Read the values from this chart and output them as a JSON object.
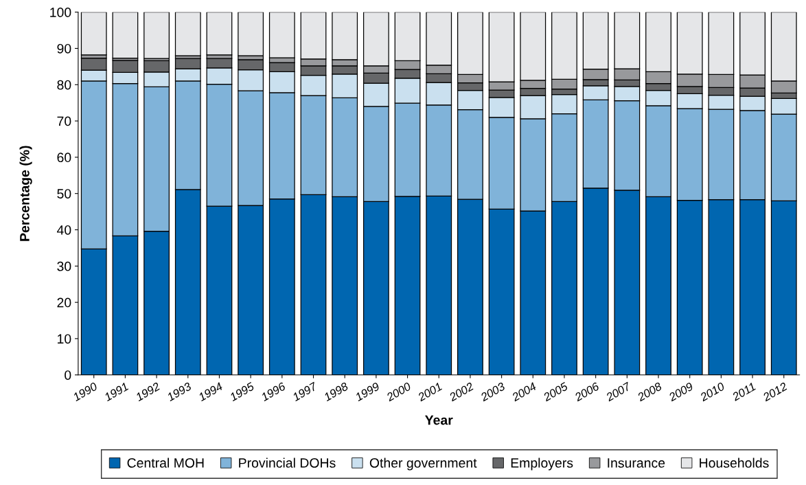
{
  "chart_data": {
    "type": "bar",
    "stacked": true,
    "xlabel": "Year",
    "ylabel": "Percentage (%)",
    "categories": [
      "1990",
      "1991",
      "1992",
      "1993",
      "1994",
      "1995",
      "1996",
      "1997",
      "1998",
      "1999",
      "2000",
      "2001",
      "2002",
      "2003",
      "2004",
      "2005",
      "2006",
      "2007",
      "2008",
      "2009",
      "2010",
      "2011",
      "2012"
    ],
    "series": [
      {
        "name": "Central MOH",
        "color": "#0066b0",
        "values": [
          34.7,
          38.3,
          39.6,
          51.1,
          46.5,
          46.7,
          48.5,
          49.7,
          49.1,
          47.8,
          49.2,
          49.3,
          48.4,
          45.7,
          45.2,
          47.8,
          51.5,
          50.9,
          49.1,
          48.1,
          48.3,
          48.3,
          48.0
        ]
      },
      {
        "name": "Provincial DOHs",
        "color": "#80b3d9",
        "values": [
          46.3,
          42.0,
          39.8,
          29.9,
          33.6,
          31.6,
          29.3,
          27.3,
          27.3,
          26.2,
          25.7,
          25.1,
          24.7,
          25.3,
          25.4,
          24.2,
          24.3,
          24.7,
          25.1,
          25.3,
          24.9,
          24.6,
          23.9
        ]
      },
      {
        "name": "Other government",
        "color": "#cae0ef",
        "values": [
          3.0,
          3.1,
          4.1,
          3.4,
          4.5,
          5.8,
          5.8,
          5.6,
          6.5,
          6.4,
          6.9,
          6.2,
          5.3,
          5.5,
          6.4,
          5.3,
          3.9,
          3.9,
          4.2,
          4.1,
          3.9,
          3.9,
          4.3
        ]
      },
      {
        "name": "Employers",
        "color": "#666769",
        "values": [
          3.3,
          3.3,
          3.1,
          2.8,
          2.6,
          2.8,
          2.5,
          2.6,
          2.3,
          2.8,
          2.4,
          2.4,
          2.1,
          2.0,
          2.0,
          1.5,
          1.7,
          1.8,
          1.9,
          2.0,
          2.1,
          2.3,
          1.5
        ]
      },
      {
        "name": "Insurance",
        "color": "#98999c",
        "values": [
          0.9,
          0.6,
          0.6,
          0.8,
          1.0,
          1.1,
          1.3,
          1.9,
          1.7,
          2.0,
          2.4,
          2.4,
          2.3,
          2.3,
          2.2,
          2.7,
          2.9,
          3.1,
          3.3,
          3.4,
          3.6,
          3.6,
          3.3
        ]
      },
      {
        "name": "Households",
        "color": "#e5e6e8",
        "values": [
          11.8,
          12.7,
          12.8,
          12.0,
          11.8,
          12.0,
          12.6,
          12.9,
          13.1,
          14.8,
          13.4,
          14.6,
          17.2,
          19.2,
          18.8,
          18.5,
          15.7,
          15.6,
          16.4,
          17.1,
          17.2,
          17.3,
          19.0
        ]
      }
    ],
    "ylim": [
      0,
      100
    ],
    "yticks": [
      0,
      10,
      20,
      30,
      40,
      50,
      60,
      70,
      80,
      90,
      100
    ],
    "grid": false,
    "legend": "bottom"
  }
}
